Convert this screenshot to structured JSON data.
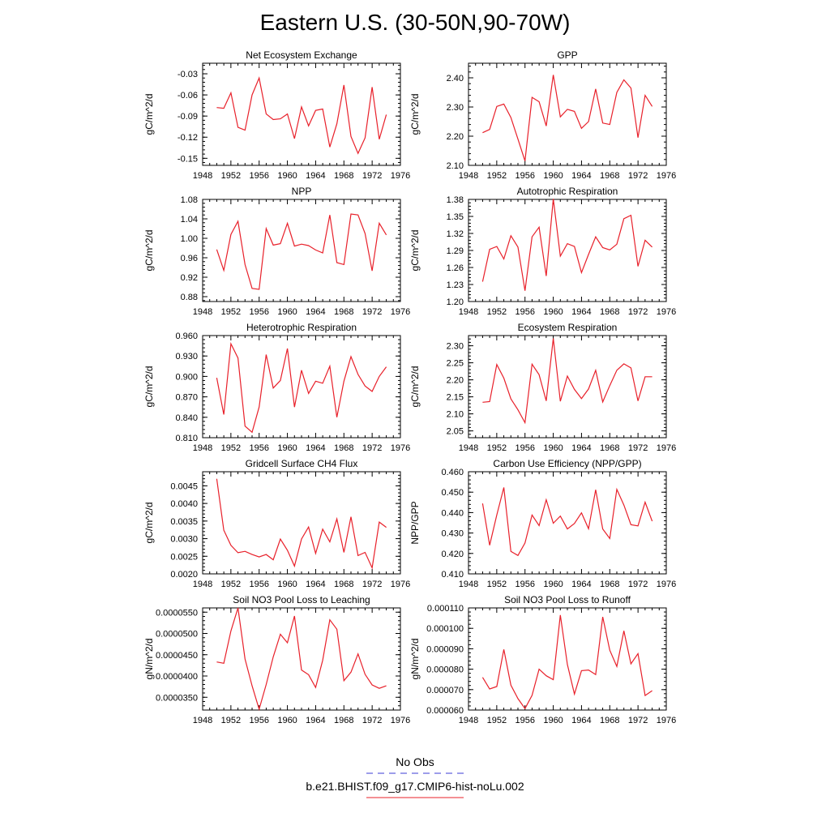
{
  "title": "Eastern U.S. (30-50N,90-70W)",
  "legend": {
    "items": [
      {
        "label": "No Obs",
        "color": "#3b3bd6",
        "dash": "8,6"
      },
      {
        "label": "b.e21.BHIST.f09_g17.CMIP6-hist-noLu.002",
        "color": "#e8202a",
        "dash": ""
      }
    ]
  },
  "colors": {
    "series": "#e8202a"
  },
  "chart_data": [
    {
      "type": "line",
      "title": "Net Ecosystem Exchange",
      "ylabel": "gC/m^2/d",
      "xlim": [
        1948,
        1976
      ],
      "xticks": [
        1948,
        1952,
        1956,
        1960,
        1964,
        1968,
        1972,
        1976
      ],
      "ylim": [
        -0.16,
        -0.015
      ],
      "yticks": [
        -0.15,
        -0.12,
        -0.09,
        -0.06,
        -0.03
      ],
      "ytick_labels": [
        "-0.15",
        "-0.12",
        "-0.09",
        "-0.06",
        "-0.03"
      ],
      "x": [
        1950,
        1951,
        1952,
        1953,
        1954,
        1955,
        1956,
        1957,
        1958,
        1959,
        1960,
        1961,
        1962,
        1963,
        1964,
        1965,
        1966,
        1967,
        1968,
        1969,
        1970,
        1971,
        1972,
        1973,
        1974
      ],
      "series": [
        {
          "values": [
            -0.078,
            -0.079,
            -0.057,
            -0.106,
            -0.11,
            -0.06,
            -0.036,
            -0.087,
            -0.095,
            -0.094,
            -0.087,
            -0.122,
            -0.077,
            -0.104,
            -0.082,
            -0.08,
            -0.134,
            -0.101,
            -0.046,
            -0.119,
            -0.143,
            -0.121,
            -0.049,
            -0.123,
            -0.088
          ]
        }
      ]
    },
    {
      "type": "line",
      "title": "GPP",
      "ylabel": "gC/m^2/d",
      "xlim": [
        1948,
        1976
      ],
      "xticks": [
        1948,
        1952,
        1956,
        1960,
        1964,
        1968,
        1972,
        1976
      ],
      "ylim": [
        2.1,
        2.45
      ],
      "yticks": [
        2.1,
        2.2,
        2.3,
        2.4
      ],
      "ytick_labels": [
        "2.10",
        "2.20",
        "2.30",
        "2.40"
      ],
      "x": [
        1950,
        1951,
        1952,
        1953,
        1954,
        1955,
        1956,
        1957,
        1958,
        1959,
        1960,
        1961,
        1962,
        1963,
        1964,
        1965,
        1966,
        1967,
        1968,
        1969,
        1970,
        1971,
        1972,
        1973,
        1974
      ],
      "series": [
        {
          "values": [
            2.212,
            2.223,
            2.302,
            2.31,
            2.264,
            2.19,
            2.115,
            2.333,
            2.318,
            2.235,
            2.41,
            2.266,
            2.292,
            2.285,
            2.227,
            2.25,
            2.362,
            2.245,
            2.24,
            2.35,
            2.393,
            2.365,
            2.195,
            2.34,
            2.302
          ]
        }
      ]
    },
    {
      "type": "line",
      "title": "NPP",
      "ylabel": "gC/m^2/d",
      "xlim": [
        1948,
        1976
      ],
      "xticks": [
        1948,
        1952,
        1956,
        1960,
        1964,
        1968,
        1972,
        1976
      ],
      "ylim": [
        0.87,
        1.08
      ],
      "yticks": [
        0.88,
        0.92,
        0.96,
        1.0,
        1.04,
        1.08
      ],
      "ytick_labels": [
        "0.88",
        "0.92",
        "0.96",
        "1.00",
        "1.04",
        "1.08"
      ],
      "x": [
        1950,
        1951,
        1952,
        1953,
        1954,
        1955,
        1956,
        1957,
        1958,
        1959,
        1960,
        1961,
        1962,
        1963,
        1964,
        1965,
        1966,
        1967,
        1968,
        1969,
        1970,
        1971,
        1972,
        1973,
        1974
      ],
      "series": [
        {
          "values": [
            0.977,
            0.934,
            1.008,
            1.035,
            0.946,
            0.897,
            0.895,
            1.02,
            0.986,
            0.989,
            1.031,
            0.984,
            0.988,
            0.985,
            0.976,
            0.97,
            1.048,
            0.95,
            0.946,
            1.05,
            1.048,
            1.01,
            0.933,
            1.031,
            1.007
          ]
        }
      ]
    },
    {
      "type": "line",
      "title": "Autotrophic Respiration",
      "ylabel": "gC/m^2/d",
      "xlim": [
        1948,
        1976
      ],
      "xticks": [
        1948,
        1952,
        1956,
        1960,
        1964,
        1968,
        1972,
        1976
      ],
      "ylim": [
        1.2,
        1.38
      ],
      "yticks": [
        1.2,
        1.23,
        1.26,
        1.29,
        1.32,
        1.35,
        1.38
      ],
      "ytick_labels": [
        "1.20",
        "1.23",
        "1.26",
        "1.29",
        "1.32",
        "1.35",
        "1.38"
      ],
      "x": [
        1950,
        1951,
        1952,
        1953,
        1954,
        1955,
        1956,
        1957,
        1958,
        1959,
        1960,
        1961,
        1962,
        1963,
        1964,
        1965,
        1966,
        1967,
        1968,
        1969,
        1970,
        1971,
        1972,
        1973,
        1974
      ],
      "series": [
        {
          "values": [
            1.235,
            1.292,
            1.297,
            1.275,
            1.316,
            1.296,
            1.219,
            1.314,
            1.331,
            1.245,
            1.381,
            1.28,
            1.302,
            1.297,
            1.251,
            1.283,
            1.314,
            1.295,
            1.291,
            1.301,
            1.346,
            1.352,
            1.262,
            1.308,
            1.296
          ]
        }
      ]
    },
    {
      "type": "line",
      "title": "Heterotrophic Respiration",
      "ylabel": "gC/m^2/d",
      "xlim": [
        1948,
        1976
      ],
      "xticks": [
        1948,
        1952,
        1956,
        1960,
        1964,
        1968,
        1972,
        1976
      ],
      "ylim": [
        0.81,
        0.96
      ],
      "yticks": [
        0.81,
        0.84,
        0.87,
        0.9,
        0.93,
        0.96
      ],
      "ytick_labels": [
        "0.810",
        "0.840",
        "0.870",
        "0.900",
        "0.930",
        "0.960"
      ],
      "x": [
        1950,
        1951,
        1952,
        1953,
        1954,
        1955,
        1956,
        1957,
        1958,
        1959,
        1960,
        1961,
        1962,
        1963,
        1964,
        1965,
        1966,
        1967,
        1968,
        1969,
        1970,
        1971,
        1972,
        1973,
        1974
      ],
      "series": [
        {
          "values": [
            0.898,
            0.844,
            0.948,
            0.927,
            0.827,
            0.818,
            0.855,
            0.932,
            0.883,
            0.894,
            0.941,
            0.855,
            0.909,
            0.875,
            0.893,
            0.89,
            0.915,
            0.84,
            0.893,
            0.929,
            0.903,
            0.886,
            0.878,
            0.9,
            0.914
          ]
        }
      ]
    },
    {
      "type": "line",
      "title": "Ecosystem Respiration",
      "ylabel": "gC/m^2/d",
      "xlim": [
        1948,
        1976
      ],
      "xticks": [
        1948,
        1952,
        1956,
        1960,
        1964,
        1968,
        1972,
        1976
      ],
      "ylim": [
        2.03,
        2.33
      ],
      "yticks": [
        2.05,
        2.1,
        2.15,
        2.2,
        2.25,
        2.3
      ],
      "ytick_labels": [
        "2.05",
        "2.10",
        "2.15",
        "2.20",
        "2.25",
        "2.30"
      ],
      "x": [
        1950,
        1951,
        1952,
        1953,
        1954,
        1955,
        1956,
        1957,
        1958,
        1959,
        1960,
        1961,
        1962,
        1963,
        1964,
        1965,
        1966,
        1967,
        1968,
        1969,
        1970,
        1971,
        1972,
        1973,
        1974
      ],
      "series": [
        {
          "values": [
            2.134,
            2.136,
            2.245,
            2.205,
            2.144,
            2.112,
            2.074,
            2.246,
            2.215,
            2.138,
            2.322,
            2.137,
            2.211,
            2.172,
            2.145,
            2.173,
            2.228,
            2.135,
            2.183,
            2.228,
            2.247,
            2.235,
            2.138,
            2.209,
            2.209
          ]
        }
      ]
    },
    {
      "type": "line",
      "title": "Gridcell Surface CH4 Flux",
      "ylabel": "gC/m^2/d",
      "xlim": [
        1948,
        1976
      ],
      "xticks": [
        1948,
        1952,
        1956,
        1960,
        1964,
        1968,
        1972,
        1976
      ],
      "ylim": [
        0.002,
        0.0049
      ],
      "yticks": [
        0.002,
        0.0025,
        0.003,
        0.0035,
        0.004,
        0.0045
      ],
      "ytick_labels": [
        "0.0020",
        "0.0025",
        "0.0030",
        "0.0035",
        "0.0040",
        "0.0045"
      ],
      "x": [
        1950,
        1951,
        1952,
        1953,
        1954,
        1955,
        1956,
        1957,
        1958,
        1959,
        1960,
        1961,
        1962,
        1963,
        1964,
        1965,
        1966,
        1967,
        1968,
        1969,
        1970,
        1971,
        1972,
        1973,
        1974
      ],
      "series": [
        {
          "values": [
            0.0047,
            0.00324,
            0.00281,
            0.0026,
            0.00264,
            0.00255,
            0.00248,
            0.00255,
            0.0024,
            0.00299,
            0.00267,
            0.00222,
            0.00299,
            0.00333,
            0.00258,
            0.00327,
            0.00291,
            0.00356,
            0.00261,
            0.00362,
            0.00252,
            0.00261,
            0.00217,
            0.00347,
            0.00332
          ]
        }
      ]
    },
    {
      "type": "line",
      "title": "Carbon Use Efficiency (NPP/GPP)",
      "ylabel": "NPP/GPP",
      "xlim": [
        1948,
        1976
      ],
      "xticks": [
        1948,
        1952,
        1956,
        1960,
        1964,
        1968,
        1972,
        1976
      ],
      "ylim": [
        0.41,
        0.46
      ],
      "yticks": [
        0.41,
        0.42,
        0.43,
        0.44,
        0.45,
        0.46
      ],
      "ytick_labels": [
        "0.410",
        "0.420",
        "0.430",
        "0.440",
        "0.450",
        "0.460"
      ],
      "x": [
        1950,
        1951,
        1952,
        1953,
        1954,
        1955,
        1956,
        1957,
        1958,
        1959,
        1960,
        1961,
        1962,
        1963,
        1964,
        1965,
        1966,
        1967,
        1968,
        1969,
        1970,
        1971,
        1972,
        1973,
        1974
      ],
      "series": [
        {
          "values": [
            0.4445,
            0.424,
            0.4388,
            0.4523,
            0.421,
            0.419,
            0.4251,
            0.4388,
            0.4336,
            0.4463,
            0.4348,
            0.4383,
            0.432,
            0.4347,
            0.4399,
            0.4321,
            0.4512,
            0.432,
            0.4273,
            0.4514,
            0.4437,
            0.4341,
            0.4335,
            0.4451,
            0.4358
          ]
        }
      ]
    },
    {
      "type": "line",
      "title": "Soil NO3 Pool Loss to Leaching",
      "ylabel": "gN/m^2/d",
      "xlim": [
        1948,
        1976
      ],
      "xticks": [
        1948,
        1952,
        1956,
        1960,
        1964,
        1968,
        1972,
        1976
      ],
      "ylim": [
        3.2e-05,
        5.6e-05
      ],
      "yticks": [
        3.5e-05,
        4e-05,
        4.5e-05,
        5e-05,
        5.5e-05
      ],
      "ytick_labels": [
        "0.0000350",
        "0.0000400",
        "0.0000450",
        "0.0000500",
        "0.0000550"
      ],
      "x": [
        1950,
        1951,
        1952,
        1953,
        1954,
        1955,
        1956,
        1957,
        1958,
        1959,
        1960,
        1961,
        1962,
        1963,
        1964,
        1965,
        1966,
        1967,
        1968,
        1969,
        1970,
        1971,
        1972,
        1973,
        1974
      ],
      "series": [
        {
          "values": [
            4.33e-05,
            4.3e-05,
            5.06e-05,
            5.6e-05,
            4.4e-05,
            3.77e-05,
            3.22e-05,
            3.8e-05,
            4.45e-05,
            4.98e-05,
            4.78e-05,
            5.41e-05,
            4.14e-05,
            4.03e-05,
            3.73e-05,
            4.37e-05,
            5.32e-05,
            5.1e-05,
            3.89e-05,
            4.09e-05,
            4.52e-05,
            4.04e-05,
            3.79e-05,
            3.71e-05,
            3.77e-05
          ]
        }
      ]
    },
    {
      "type": "line",
      "title": "Soil NO3 Pool Loss to Runoff",
      "ylabel": "gN/m^2/d",
      "xlim": [
        1948,
        1976
      ],
      "xticks": [
        1948,
        1952,
        1956,
        1960,
        1964,
        1968,
        1972,
        1976
      ],
      "ylim": [
        6e-05,
        0.00011
      ],
      "yticks": [
        6e-05,
        7e-05,
        8e-05,
        9e-05,
        0.0001,
        0.00011
      ],
      "ytick_labels": [
        "0.000060",
        "0.000070",
        "0.000080",
        "0.000090",
        "0.000100",
        "0.000110"
      ],
      "x": [
        1950,
        1951,
        1952,
        1953,
        1954,
        1955,
        1956,
        1957,
        1958,
        1959,
        1960,
        1961,
        1962,
        1963,
        1964,
        1965,
        1966,
        1967,
        1968,
        1969,
        1970,
        1971,
        1972,
        1973,
        1974
      ],
      "series": [
        {
          "values": [
            7.6e-05,
            7.03e-05,
            7.15e-05,
            8.97e-05,
            7.22e-05,
            6.56e-05,
            6.07e-05,
            6.72e-05,
            8e-05,
            7.68e-05,
            7.49e-05,
            0.0001065,
            8.23e-05,
            6.78e-05,
            7.93e-05,
            7.96e-05,
            7.74e-05,
            0.0001056,
            8.93e-05,
            8.13e-05,
            9.88e-05,
            8.26e-05,
            8.76e-05,
            6.71e-05,
            6.95e-05
          ]
        }
      ]
    }
  ]
}
